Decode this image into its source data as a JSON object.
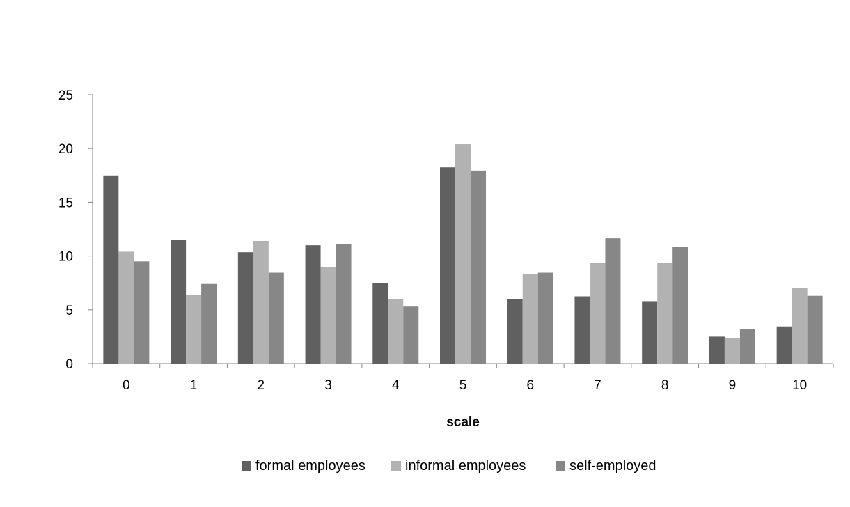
{
  "chart_data": {
    "type": "bar",
    "title": "",
    "xlabel": "scale",
    "ylabel": "",
    "ylim": [
      0,
      25
    ],
    "yticks": [
      0,
      5,
      10,
      15,
      20,
      25
    ],
    "categories": [
      "0",
      "1",
      "2",
      "3",
      "4",
      "5",
      "6",
      "7",
      "8",
      "9",
      "10"
    ],
    "series": [
      {
        "name": "formal employees",
        "color": "#606060",
        "values": [
          17.5,
          11.5,
          10.35,
          11.0,
          7.45,
          18.25,
          6.0,
          6.25,
          5.8,
          2.5,
          3.45
        ]
      },
      {
        "name": "informal employees",
        "color": "#b2b2b2",
        "values": [
          10.4,
          6.35,
          11.4,
          9.0,
          6.0,
          20.4,
          8.35,
          9.35,
          9.35,
          2.35,
          7.0
        ]
      },
      {
        "name": "self-employed",
        "color": "#878787",
        "values": [
          9.5,
          7.4,
          8.45,
          11.1,
          5.3,
          17.95,
          8.45,
          11.65,
          10.85,
          3.2,
          6.3
        ]
      }
    ],
    "grid": false,
    "legend_position": "bottom"
  }
}
